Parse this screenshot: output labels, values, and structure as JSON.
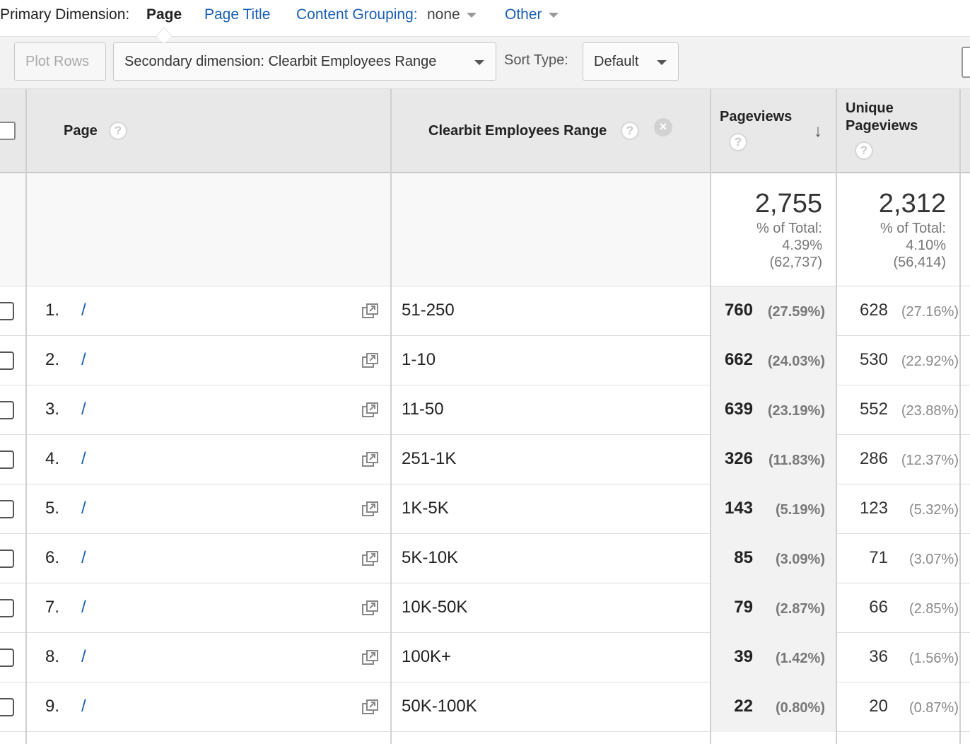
{
  "primary_dimension": {
    "label": "Primary Dimension:",
    "active": "Page",
    "page_title": "Page Title",
    "content_grouping_label": "Content Grouping:",
    "content_grouping_value": "none",
    "other": "Other"
  },
  "toolbar": {
    "plot_rows": "Plot Rows",
    "secondary_dimension": "Secondary dimension: Clearbit Employees Range",
    "sort_type_label": "Sort Type:",
    "sort_type_value": "Default"
  },
  "table": {
    "headers": {
      "page": "Page",
      "secondary": "Clearbit Employees Range",
      "pageviews": "Pageviews",
      "unique_pageviews_line1": "Unique",
      "unique_pageviews_line2": "Pageviews",
      "help": "?",
      "remove": "×"
    },
    "summary": {
      "pageviews": {
        "value": "2,755",
        "pct_label": "% of Total:",
        "pct": "4.39%",
        "total": "(62,737)"
      },
      "unique_pageviews": {
        "value": "2,312",
        "pct_label": "% of Total:",
        "pct": "4.10%",
        "total": "(56,414)"
      }
    },
    "rows": [
      {
        "idx": "1.",
        "page": "/",
        "range": "51-250",
        "pv": "760",
        "pv_pct": "(27.59%)",
        "upv": "628",
        "upv_pct": "(27.16%)"
      },
      {
        "idx": "2.",
        "page": "/",
        "range": "1-10",
        "pv": "662",
        "pv_pct": "(24.03%)",
        "upv": "530",
        "upv_pct": "(22.92%)"
      },
      {
        "idx": "3.",
        "page": "/",
        "range": "11-50",
        "pv": "639",
        "pv_pct": "(23.19%)",
        "upv": "552",
        "upv_pct": "(23.88%)"
      },
      {
        "idx": "4.",
        "page": "/",
        "range": "251-1K",
        "pv": "326",
        "pv_pct": "(11.83%)",
        "upv": "286",
        "upv_pct": "(12.37%)"
      },
      {
        "idx": "5.",
        "page": "/",
        "range": "1K-5K",
        "pv": "143",
        "pv_pct": "(5.19%)",
        "upv": "123",
        "upv_pct": "(5.32%)"
      },
      {
        "idx": "6.",
        "page": "/",
        "range": "5K-10K",
        "pv": "85",
        "pv_pct": "(3.09%)",
        "upv": "71",
        "upv_pct": "(3.07%)"
      },
      {
        "idx": "7.",
        "page": "/",
        "range": "10K-50K",
        "pv": "79",
        "pv_pct": "(2.87%)",
        "upv": "66",
        "upv_pct": "(2.85%)"
      },
      {
        "idx": "8.",
        "page": "/",
        "range": "100K+",
        "pv": "39",
        "pv_pct": "(1.42%)",
        "upv": "36",
        "upv_pct": "(1.56%)"
      },
      {
        "idx": "9.",
        "page": "/",
        "range": "50K-100K",
        "pv": "22",
        "pv_pct": "(0.80%)",
        "upv": "20",
        "upv_pct": "(0.87%)"
      }
    ]
  },
  "icons": {
    "sort": "arrow-down-icon",
    "open_page": "open-in-new-window-icon",
    "dropdown": "chevron-down-icon"
  },
  "colors": {
    "link": "#1a5fb4",
    "header_bg": "#e8e8e8",
    "toolbar_bg": "#f2f2f2"
  }
}
